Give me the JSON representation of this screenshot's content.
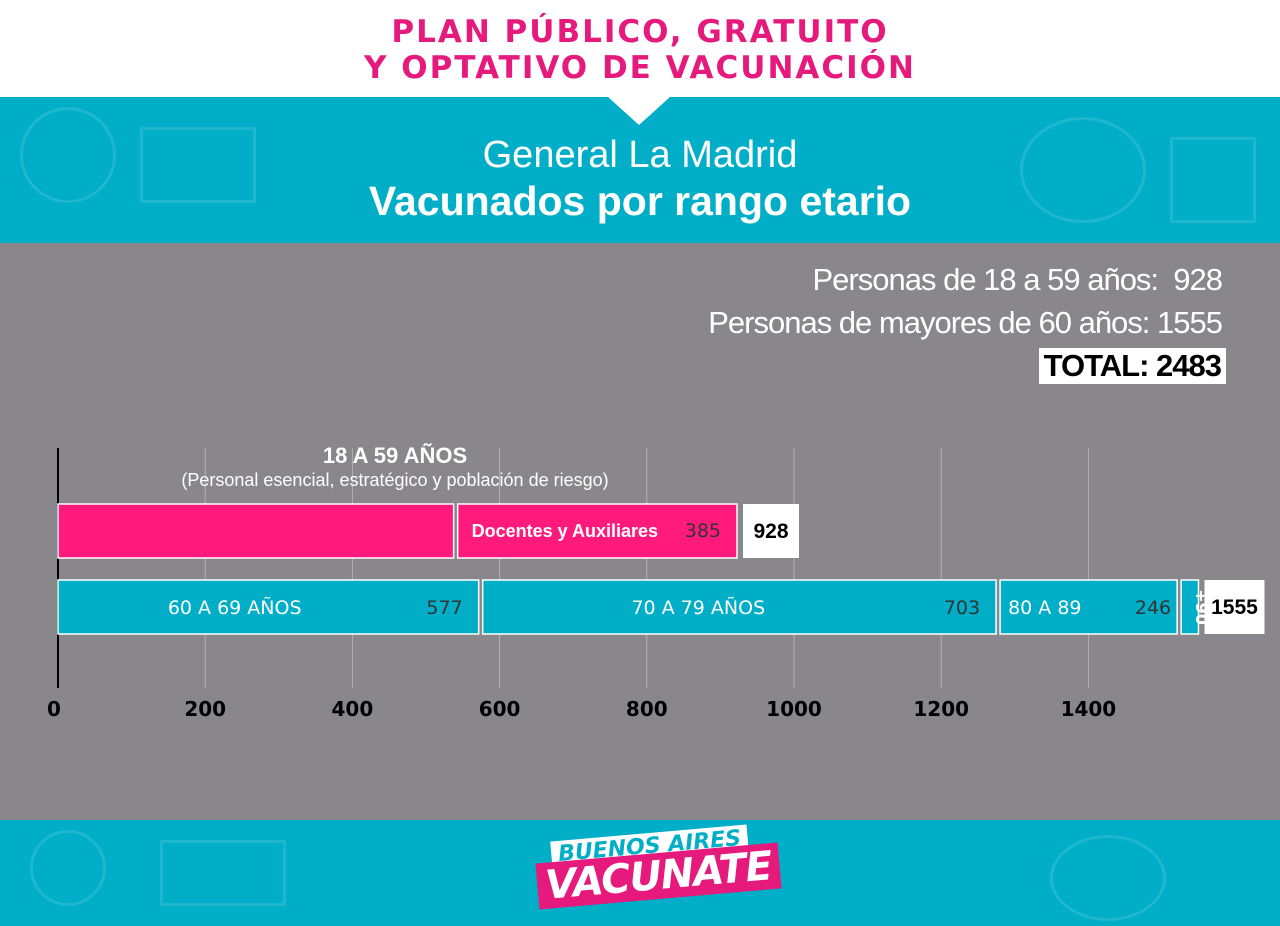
{
  "header": {
    "plan_title": "PLAN PÚBLICO, GRATUITO\nY OPTATIVO DE VACUNACIÓN",
    "place_name": "General La Madrid",
    "chart_subtitle": "Vacunados por rango etario"
  },
  "summary": {
    "line_1": "Personas de 18 a 59 años:  928",
    "line_2": "Personas de mayores de 60 años: 1555",
    "total": "TOTAL: 2483"
  },
  "logo": {
    "top": "BUENOS AIRES",
    "bottom": "VACUNATE"
  },
  "colors": {
    "pink": "#ff1a7c",
    "teal": "#00aec7",
    "gray": "#89878c",
    "white": "#ffffff"
  },
  "chart_data": {
    "type": "bar",
    "orientation": "horizontal",
    "stacked": true,
    "xlim": [
      0,
      1600
    ],
    "x_ticks": [
      0,
      200,
      400,
      600,
      800,
      1000,
      1200,
      1400
    ],
    "grid": true,
    "group_title": "18 A 59 AÑOS",
    "group_note": "(Personal esencial, estratégico y población de riesgo)",
    "rows": [
      {
        "total": 928,
        "segments": [
          {
            "label": "",
            "value": 543,
            "value_label": "",
            "color": "#ff1a7c"
          },
          {
            "label": "Docentes y Auxiliares",
            "value": 385,
            "value_label": "385",
            "color": "#ff1a7c"
          }
        ]
      },
      {
        "total": 1555,
        "segments": [
          {
            "label": "60 A 69 AÑOS",
            "value": 577,
            "value_label": "577",
            "color": "#00aec7"
          },
          {
            "label": "70 A 79 AÑOS",
            "value": 703,
            "value_label": "703",
            "color": "#00aec7"
          },
          {
            "label": "80 A 89",
            "value": 246,
            "value_label": "246",
            "color": "#00aec7"
          },
          {
            "label": "+90",
            "value": 29,
            "value_label": "",
            "color": "#00aec7"
          }
        ]
      }
    ]
  }
}
